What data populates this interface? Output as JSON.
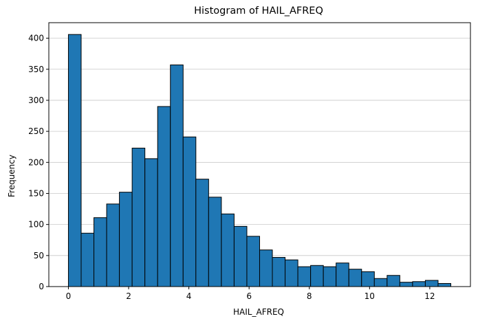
{
  "chart_data": {
    "type": "bar",
    "title": "Histogram of HAIL_AFREQ",
    "xlabel": "HAIL_AFREQ",
    "ylabel": "Frequency",
    "xlim": [
      -0.65,
      13.35
    ],
    "ylim": [
      0,
      425
    ],
    "x_ticks": [
      0,
      2,
      4,
      6,
      8,
      10,
      12
    ],
    "y_ticks": [
      0,
      50,
      100,
      150,
      200,
      250,
      300,
      350,
      400
    ],
    "grid": "y",
    "bin_start": 0,
    "bin_width": 0.4233,
    "values": [
      406,
      86,
      111,
      133,
      152,
      223,
      206,
      290,
      357,
      241,
      173,
      144,
      117,
      97,
      81,
      59,
      47,
      43,
      32,
      34,
      32,
      38,
      28,
      24,
      13,
      18,
      7,
      8,
      10,
      5
    ],
    "colors": {
      "bar": "#1f77b4",
      "edge": "#000000",
      "grid": "#c8c8c8"
    }
  }
}
